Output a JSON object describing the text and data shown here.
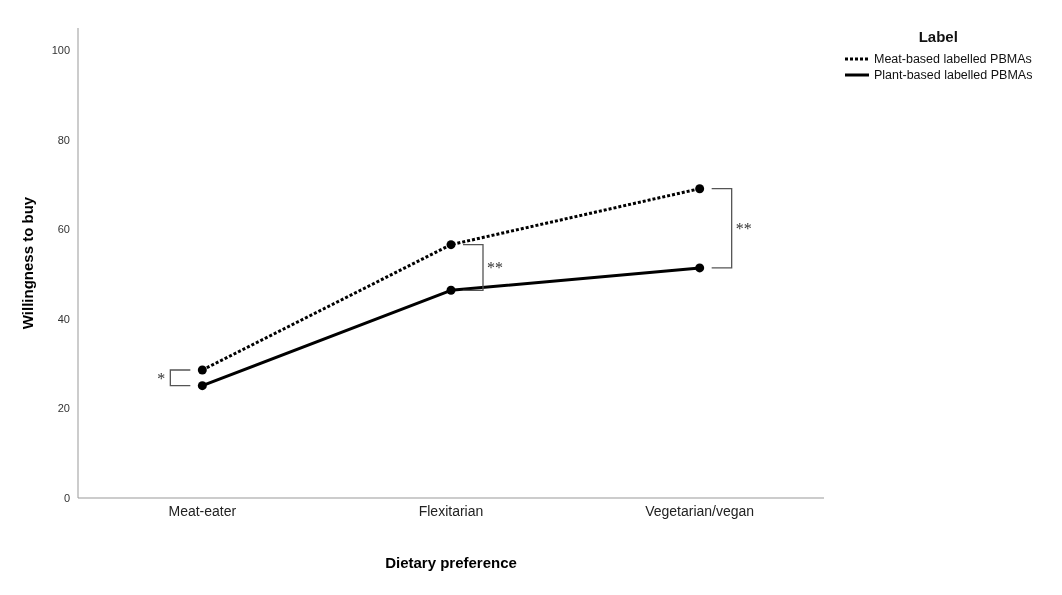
{
  "chart_data": {
    "type": "line",
    "xlabel": "Dietary preference",
    "ylabel": "Willingness to buy",
    "legend_title": "Label",
    "categories": [
      "Meat-eater",
      "Flexitarian",
      "Vegetarian/vegan"
    ],
    "series": [
      {
        "name": "Meat-based labelled PBMAs",
        "color": "#000000",
        "line_style": "dotted",
        "values": [
          28.6,
          56.6,
          69.1
        ]
      },
      {
        "name": "Plant-based labelled PBMAs",
        "color": "#000000",
        "line_style": "solid",
        "values": [
          25.1,
          46.4,
          51.4
        ]
      }
    ],
    "ylim": [
      0,
      105
    ],
    "yticks": [
      0,
      20,
      40,
      60,
      80,
      100
    ],
    "legend": "top right",
    "marker": "circle",
    "annotations": [
      "*",
      "**",
      "**"
    ]
  }
}
